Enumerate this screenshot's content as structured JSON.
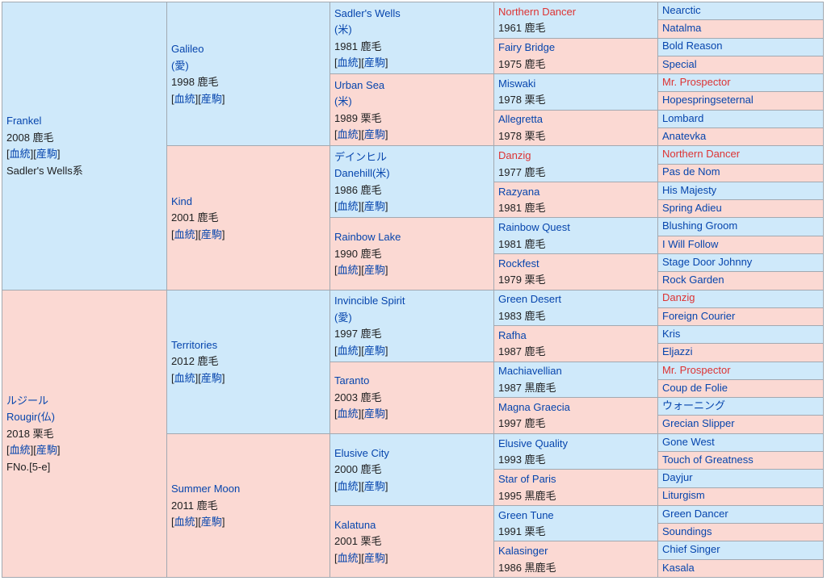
{
  "accent_colors": {
    "sire_line": "#cfe9fa",
    "dam_line": "#fbd9d3",
    "link": "#0645ad",
    "highlight": "#dd3333"
  },
  "link_labels": {
    "pedigree": "血統",
    "progeny": "産駒"
  },
  "gen1": [
    {
      "lines": [
        "Frankel"
      ],
      "info": "2008 鹿毛",
      "links": true,
      "extra": "Sadler's Wells系"
    },
    {
      "lines": [
        "ルジール",
        "Rougir(仏)"
      ],
      "info": "2018 栗毛",
      "links": true,
      "extra": "FNo.[5-e]"
    }
  ],
  "gen2": [
    {
      "lines": [
        "Galileo",
        "(愛)"
      ],
      "info": "1998 鹿毛",
      "links": true
    },
    {
      "lines": [
        "Kind"
      ],
      "info": "2001 鹿毛",
      "links": true
    },
    {
      "lines": [
        "Territories"
      ],
      "info": "2012 鹿毛",
      "links": true
    },
    {
      "lines": [
        "Summer Moon"
      ],
      "info": "2011 鹿毛",
      "links": true
    }
  ],
  "gen3": [
    {
      "lines": [
        "Sadler's Wells",
        "(米)"
      ],
      "info": "1981 鹿毛",
      "links": true
    },
    {
      "lines": [
        "Urban Sea",
        "(米)"
      ],
      "info": "1989 栗毛",
      "links": true
    },
    {
      "lines": [
        "デインヒル",
        "Danehill(米)"
      ],
      "info": "1986 鹿毛",
      "links": true
    },
    {
      "lines": [
        "Rainbow Lake"
      ],
      "info": "1990 鹿毛",
      "links": true
    },
    {
      "lines": [
        "Invincible Spirit",
        "(愛)"
      ],
      "info": "1997 鹿毛",
      "links": true
    },
    {
      "lines": [
        "Taranto"
      ],
      "info": "2003 鹿毛",
      "links": true
    },
    {
      "lines": [
        "Elusive City"
      ],
      "info": "2000 鹿毛",
      "links": true
    },
    {
      "lines": [
        "Kalatuna"
      ],
      "info": "2001 栗毛",
      "links": true
    }
  ],
  "gen4": [
    {
      "name": "Northern Dancer",
      "info": "1961 鹿毛",
      "red": true
    },
    {
      "name": "Fairy Bridge",
      "info": "1975 鹿毛"
    },
    {
      "name": "Miswaki",
      "info": "1978 栗毛"
    },
    {
      "name": "Allegretta",
      "info": "1978 栗毛"
    },
    {
      "name": "Danzig",
      "info": "1977 鹿毛",
      "red": true
    },
    {
      "name": "Razyana",
      "info": "1981 鹿毛"
    },
    {
      "name": "Rainbow Quest",
      "info": "1981 鹿毛"
    },
    {
      "name": "Rockfest",
      "info": "1979 栗毛"
    },
    {
      "name": "Green Desert",
      "info": "1983 鹿毛"
    },
    {
      "name": "Rafha",
      "info": "1987 鹿毛"
    },
    {
      "name": "Machiavellian",
      "info": "1987 黒鹿毛"
    },
    {
      "name": "Magna Graecia",
      "info": "1997 鹿毛"
    },
    {
      "name": "Elusive Quality",
      "info": "1993 鹿毛"
    },
    {
      "name": "Star of Paris",
      "info": "1995 黒鹿毛"
    },
    {
      "name": "Green Tune",
      "info": "1991 栗毛"
    },
    {
      "name": "Kalasinger",
      "info": "1986 黒鹿毛"
    }
  ],
  "gen5": [
    {
      "name": "Nearctic"
    },
    {
      "name": "Natalma"
    },
    {
      "name": "Bold Reason"
    },
    {
      "name": "Special"
    },
    {
      "name": "Mr. Prospector",
      "red": true
    },
    {
      "name": "Hopespringseternal"
    },
    {
      "name": "Lombard"
    },
    {
      "name": "Anatevka"
    },
    {
      "name": "Northern Dancer",
      "red": true
    },
    {
      "name": "Pas de Nom"
    },
    {
      "name": "His Majesty"
    },
    {
      "name": "Spring Adieu"
    },
    {
      "name": "Blushing Groom"
    },
    {
      "name": "I Will Follow"
    },
    {
      "name": "Stage Door Johnny"
    },
    {
      "name": "Rock Garden"
    },
    {
      "name": "Danzig",
      "red": true
    },
    {
      "name": "Foreign Courier"
    },
    {
      "name": "Kris"
    },
    {
      "name": "Eljazzi"
    },
    {
      "name": "Mr. Prospector",
      "red": true
    },
    {
      "name": "Coup de Folie"
    },
    {
      "name": "ウォーニング"
    },
    {
      "name": "Grecian Slipper"
    },
    {
      "name": "Gone West"
    },
    {
      "name": "Touch of Greatness"
    },
    {
      "name": "Dayjur"
    },
    {
      "name": "Liturgism"
    },
    {
      "name": "Green Dancer"
    },
    {
      "name": "Soundings"
    },
    {
      "name": "Chief Singer"
    },
    {
      "name": "Kasala"
    }
  ]
}
